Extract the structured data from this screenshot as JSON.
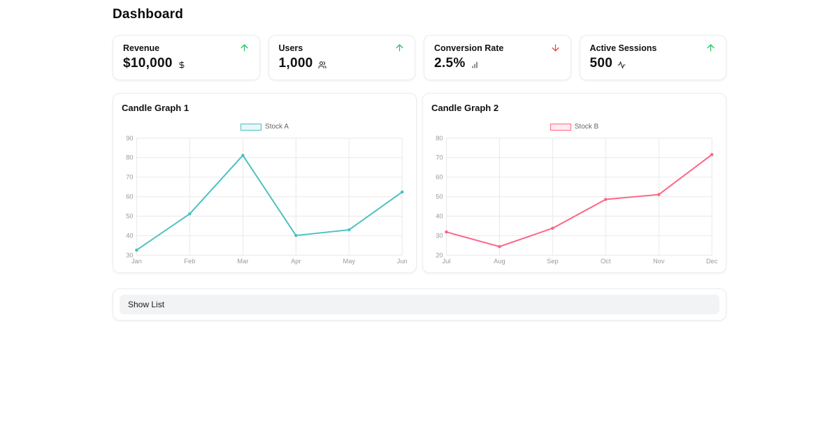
{
  "page_title": "Dashboard",
  "colors": {
    "trend_up": "#22c55e",
    "trend_down": "#ef4444",
    "stock_a": "#4bc0c0",
    "stock_b": "#ff6384"
  },
  "stats": [
    {
      "label": "Revenue",
      "value": "$10,000",
      "icon": "dollar-sign",
      "trend": "up"
    },
    {
      "label": "Users",
      "value": "1,000",
      "icon": "users",
      "trend": "up"
    },
    {
      "label": "Conversion Rate",
      "value": "2.5%",
      "icon": "bar-chart",
      "trend": "down"
    },
    {
      "label": "Active Sessions",
      "value": "500",
      "icon": "activity",
      "trend": "up"
    }
  ],
  "chart_data": [
    {
      "type": "line",
      "title": "Candle Graph 1",
      "categories": [
        "Jan",
        "Feb",
        "Mar",
        "Apr",
        "May",
        "Jun"
      ],
      "series": [
        {
          "name": "Stock A",
          "color": "#4bc0c0",
          "values": [
            32.6,
            51.2,
            81.2,
            40.1,
            43.0,
            62.4
          ]
        }
      ],
      "ylim": [
        30,
        90
      ],
      "ytick_step": 10,
      "grid": true,
      "legend_position": "top"
    },
    {
      "type": "line",
      "title": "Candle Graph 2",
      "categories": [
        "Jul",
        "Aug",
        "Sep",
        "Oct",
        "Nov",
        "Dec"
      ],
      "series": [
        {
          "name": "Stock B",
          "color": "#ff6384",
          "values": [
            31.9,
            24.4,
            33.8,
            48.6,
            51.1,
            71.6
          ]
        }
      ],
      "ylim": [
        20,
        80
      ],
      "ytick_step": 10,
      "grid": true,
      "legend_position": "top"
    }
  ],
  "show_list": {
    "label": "Show List"
  }
}
